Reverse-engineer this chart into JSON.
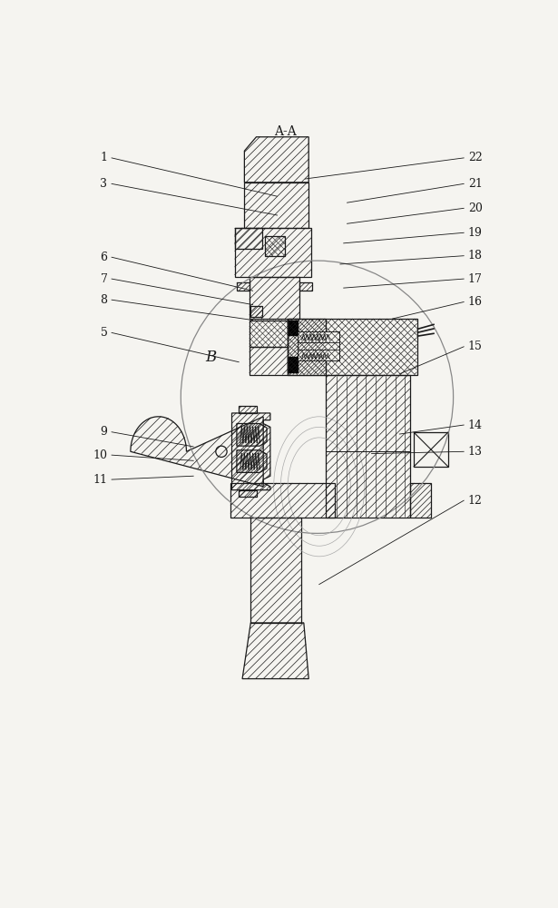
{
  "title": "A-A",
  "label_B": "B",
  "bg_color": "#f5f4f0",
  "line_color": "#1a1a1a",
  "fig_width": 6.15,
  "fig_height": 10.0,
  "dpi": 100,
  "label_fontsize": 9,
  "left_labels": [
    [
      "1",
      55,
      930,
      295,
      875
    ],
    [
      "3",
      55,
      893,
      295,
      848
    ],
    [
      "6",
      55,
      788,
      260,
      740
    ],
    [
      "7",
      55,
      757,
      260,
      720
    ],
    [
      "8",
      55,
      727,
      260,
      698
    ],
    [
      "5",
      55,
      680,
      240,
      638
    ],
    [
      "9",
      55,
      538,
      175,
      517
    ],
    [
      "10",
      55,
      505,
      175,
      497
    ],
    [
      "11",
      55,
      470,
      175,
      475
    ]
  ],
  "right_labels": [
    [
      "22",
      565,
      930,
      335,
      900
    ],
    [
      "21",
      565,
      893,
      395,
      866
    ],
    [
      "20",
      565,
      858,
      395,
      836
    ],
    [
      "19",
      565,
      823,
      390,
      808
    ],
    [
      "18",
      565,
      790,
      385,
      778
    ],
    [
      "17",
      565,
      757,
      390,
      744
    ],
    [
      "16",
      565,
      724,
      460,
      700
    ],
    [
      "15",
      565,
      660,
      470,
      621
    ],
    [
      "14",
      565,
      548,
      470,
      535
    ],
    [
      "13",
      565,
      510,
      430,
      507
    ],
    [
      "12",
      565,
      440,
      355,
      320
    ]
  ]
}
